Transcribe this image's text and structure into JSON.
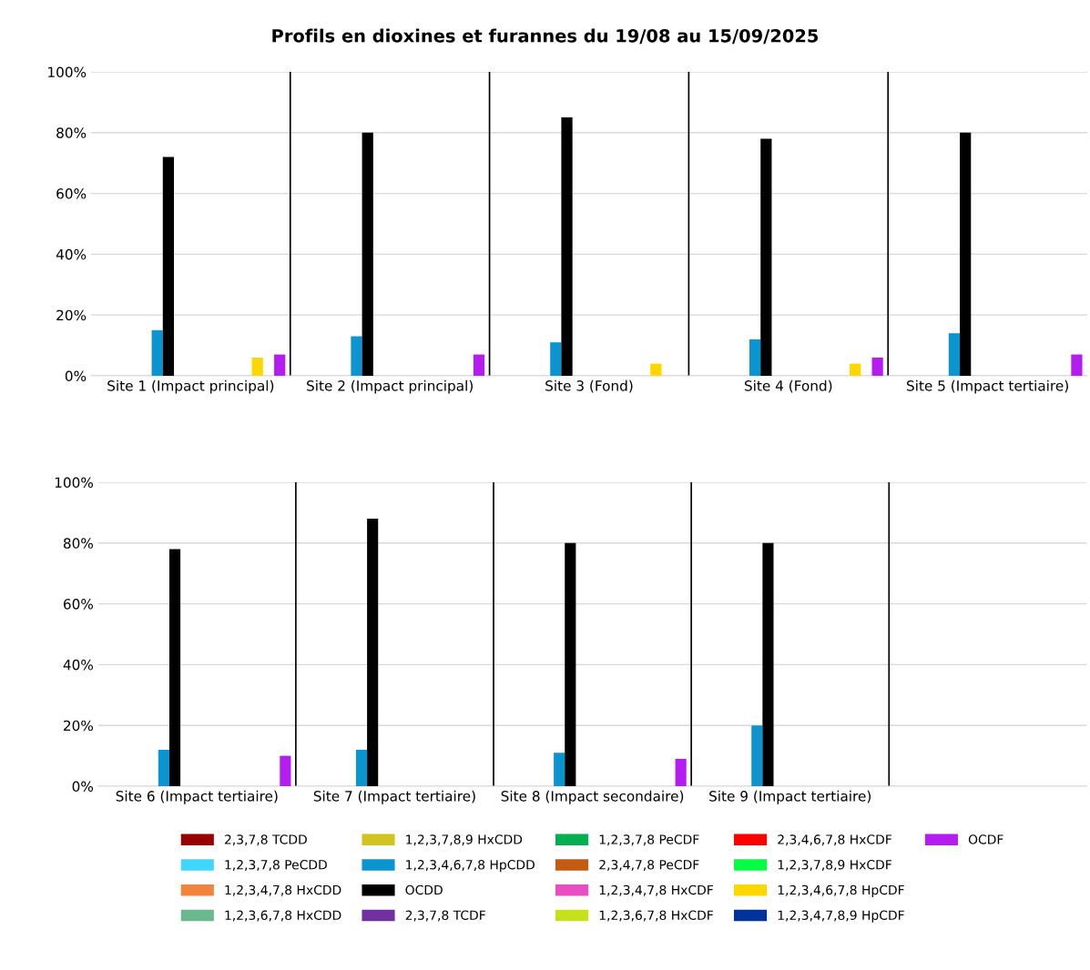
{
  "chart_data": [
    {
      "type": "bar",
      "title": "Profils en dioxines et furannes du 19/08 au 15/09/2025",
      "categories": [
        "Site 1 (Impact principal)",
        "Site 2 (Impact principal)",
        "Site 3 (Fond)",
        "Site 4 (Fond)",
        "Site 5 (Impact tertiaire)"
      ],
      "ylim": [
        0,
        100
      ],
      "yticks": [
        {
          "value": 0,
          "label": "0%"
        },
        {
          "value": 20,
          "label": "20%"
        },
        {
          "value": 40,
          "label": "40%"
        },
        {
          "value": 60,
          "label": "60%"
        },
        {
          "value": 80,
          "label": "80%"
        },
        {
          "value": 100,
          "label": "100%"
        }
      ],
      "grid": true,
      "series": [
        {
          "color": "#990000",
          "values": [
            null,
            null,
            null,
            null,
            null
          ]
        },
        {
          "color": "#3fd7ff",
          "values": [
            null,
            null,
            null,
            null,
            null
          ]
        },
        {
          "color": "#f0843c",
          "values": [
            null,
            null,
            null,
            null,
            null
          ]
        },
        {
          "color": "#6bb88f",
          "values": [
            null,
            null,
            null,
            null,
            null
          ]
        },
        {
          "color": "#d4c21e",
          "values": [
            null,
            null,
            null,
            null,
            null
          ]
        },
        {
          "color": "#0a94d0",
          "values": [
            15,
            13,
            11,
            12,
            14
          ]
        },
        {
          "color": "#000000",
          "values": [
            72,
            80,
            85,
            78,
            80
          ]
        },
        {
          "color": "#7030a0",
          "values": [
            null,
            null,
            null,
            null,
            null
          ]
        },
        {
          "color": "#00b050",
          "values": [
            null,
            null,
            null,
            null,
            null
          ]
        },
        {
          "color": "#c55a11",
          "values": [
            null,
            null,
            null,
            null,
            null
          ]
        },
        {
          "color": "#e84fc0",
          "values": [
            null,
            null,
            null,
            null,
            null
          ]
        },
        {
          "color": "#c5e01c",
          "values": [
            null,
            null,
            null,
            null,
            null
          ]
        },
        {
          "color": "#ff0000",
          "values": [
            null,
            null,
            null,
            null,
            null
          ]
        },
        {
          "color": "#00ff40",
          "values": [
            null,
            null,
            null,
            null,
            null
          ]
        },
        {
          "color": "#ffd700",
          "values": [
            6,
            null,
            4,
            4,
            null
          ]
        },
        {
          "color": "#003399",
          "values": [
            null,
            null,
            null,
            null,
            null
          ]
        },
        {
          "color": "#b41cf0",
          "values": [
            7,
            7,
            null,
            6,
            7
          ]
        }
      ]
    },
    {
      "type": "bar",
      "categories": [
        "Site 6 (Impact tertiaire)",
        "Site 7 (Impact tertiaire)",
        "Site 8 (Impact secondaire)",
        "Site 9 (Impact tertiaire)",
        null
      ],
      "ylim": [
        0,
        100
      ],
      "yticks": [
        {
          "value": 0,
          "label": "0%"
        },
        {
          "value": 20,
          "label": "20%"
        },
        {
          "value": 40,
          "label": "40%"
        },
        {
          "value": 60,
          "label": "60%"
        },
        {
          "value": 80,
          "label": "80%"
        },
        {
          "value": 100,
          "label": "100%"
        }
      ],
      "grid": true,
      "legend": "bottom",
      "series": [
        {
          "name": "2,3,7,8 TCDD",
          "color": "#990000",
          "values": [
            null,
            null,
            null,
            null,
            null
          ]
        },
        {
          "name": "1,2,3,7,8 PeCDD",
          "color": "#3fd7ff",
          "values": [
            null,
            null,
            null,
            null,
            null
          ]
        },
        {
          "name": "1,2,3,4,7,8 HxCDD",
          "color": "#f0843c",
          "values": [
            null,
            null,
            null,
            null,
            null
          ]
        },
        {
          "name": "1,2,3,6,7,8 HxCDD",
          "color": "#6bb88f",
          "values": [
            null,
            null,
            null,
            null,
            null
          ]
        },
        {
          "name": "1,2,3,7,8,9 HxCDD",
          "color": "#d4c21e",
          "values": [
            null,
            null,
            null,
            null,
            null
          ]
        },
        {
          "name": "1,2,3,4,6,7,8 HpCDD",
          "color": "#0a94d0",
          "values": [
            12,
            12,
            11,
            20,
            null
          ]
        },
        {
          "name": "OCDD",
          "color": "#000000",
          "values": [
            78,
            88,
            80,
            80,
            null
          ]
        },
        {
          "name": "2,3,7,8 TCDF",
          "color": "#7030a0",
          "values": [
            null,
            null,
            null,
            null,
            null
          ]
        },
        {
          "name": "1,2,3,7,8 PeCDF",
          "color": "#00b050",
          "values": [
            null,
            null,
            null,
            null,
            null
          ]
        },
        {
          "name": "2,3,4,7,8 PeCDF",
          "color": "#c55a11",
          "values": [
            null,
            null,
            null,
            null,
            null
          ]
        },
        {
          "name": "1,2,3,4,7,8 HxCDF",
          "color": "#e84fc0",
          "values": [
            null,
            null,
            null,
            null,
            null
          ]
        },
        {
          "name": "1,2,3,6,7,8 HxCDF",
          "color": "#c5e01c",
          "values": [
            null,
            null,
            null,
            null,
            null
          ]
        },
        {
          "name": "2,3,4,6,7,8 HxCDF",
          "color": "#ff0000",
          "values": [
            null,
            null,
            null,
            null,
            null
          ]
        },
        {
          "name": "1,2,3,7,8,9 HxCDF",
          "color": "#00ff40",
          "values": [
            null,
            null,
            null,
            null,
            null
          ]
        },
        {
          "name": "1,2,3,4,6,7,8 HpCDF",
          "color": "#ffd700",
          "values": [
            null,
            null,
            null,
            null,
            null
          ]
        },
        {
          "name": "1,2,3,4,7,8,9 HpCDF",
          "color": "#003399",
          "values": [
            null,
            null,
            null,
            null,
            null
          ]
        },
        {
          "name": "OCDF",
          "color": "#b41cf0",
          "values": [
            10,
            null,
            9,
            null,
            null
          ]
        }
      ]
    }
  ]
}
